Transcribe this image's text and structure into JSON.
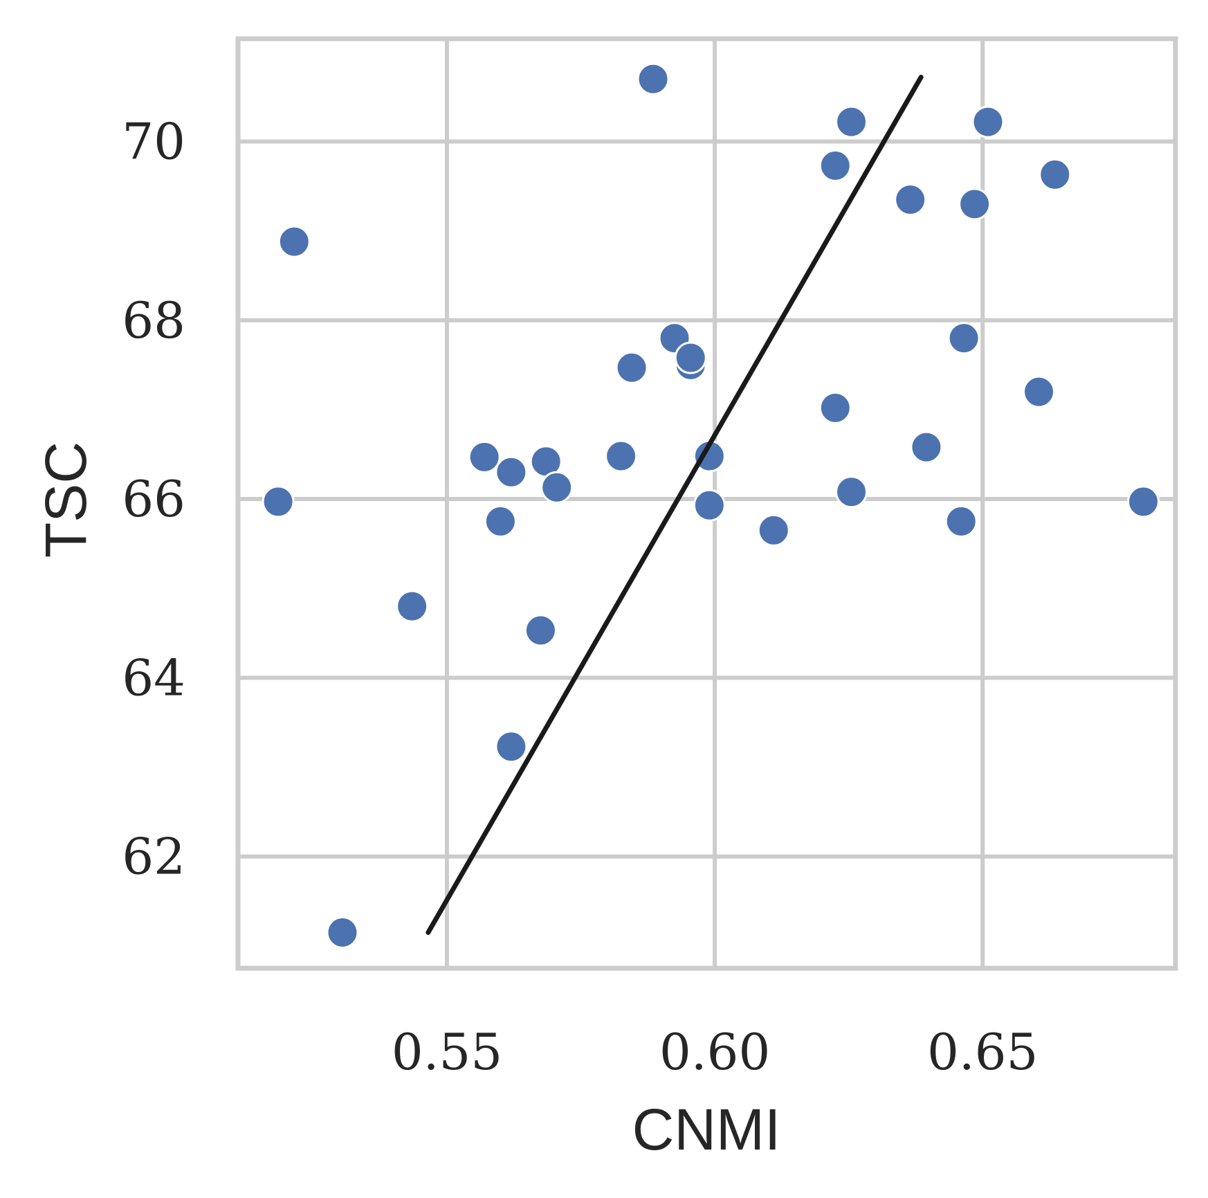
{
  "chart_data": {
    "type": "scatter",
    "xlabel": "CNMI",
    "ylabel": "TSC",
    "xlim": [
      0.511,
      0.686
    ],
    "ylim": [
      60.75,
      71.15
    ],
    "xticks": [
      {
        "value": 0.55,
        "label": "0.55"
      },
      {
        "value": 0.6,
        "label": "0.60"
      },
      {
        "value": 0.65,
        "label": "0.65"
      }
    ],
    "yticks": [
      {
        "value": 62,
        "label": "62"
      },
      {
        "value": 64,
        "label": "64"
      },
      {
        "value": 66,
        "label": "66"
      },
      {
        "value": 68,
        "label": "68"
      },
      {
        "value": 70,
        "label": "70"
      }
    ],
    "grid": true,
    "colors": {
      "points": "#4c72b0",
      "fit_line": "#1a1a1a",
      "grid": "#cccccc",
      "text": "#262626"
    },
    "series": [
      {
        "points": [
          {
            "x": 0.5185,
            "y": 65.97
          },
          {
            "x": 0.5215,
            "y": 68.88
          },
          {
            "x": 0.5305,
            "y": 61.15
          },
          {
            "x": 0.5435,
            "y": 64.8
          },
          {
            "x": 0.557,
            "y": 66.47
          },
          {
            "x": 0.56,
            "y": 65.75
          },
          {
            "x": 0.562,
            "y": 66.3
          },
          {
            "x": 0.562,
            "y": 63.23
          },
          {
            "x": 0.5675,
            "y": 64.53
          },
          {
            "x": 0.5685,
            "y": 66.42
          },
          {
            "x": 0.5705,
            "y": 66.13
          },
          {
            "x": 0.5825,
            "y": 66.48
          },
          {
            "x": 0.5845,
            "y": 67.47
          },
          {
            "x": 0.5885,
            "y": 70.7
          },
          {
            "x": 0.5925,
            "y": 67.8
          },
          {
            "x": 0.5955,
            "y": 67.5
          },
          {
            "x": 0.5955,
            "y": 67.58
          },
          {
            "x": 0.599,
            "y": 66.48
          },
          {
            "x": 0.599,
            "y": 65.93
          },
          {
            "x": 0.611,
            "y": 65.65
          },
          {
            "x": 0.6225,
            "y": 67.02
          },
          {
            "x": 0.6225,
            "y": 69.73
          },
          {
            "x": 0.6255,
            "y": 70.22
          },
          {
            "x": 0.6255,
            "y": 66.08
          },
          {
            "x": 0.6365,
            "y": 69.35
          },
          {
            "x": 0.6395,
            "y": 66.58
          },
          {
            "x": 0.646,
            "y": 65.75
          },
          {
            "x": 0.6465,
            "y": 67.8
          },
          {
            "x": 0.6485,
            "y": 69.3
          },
          {
            "x": 0.651,
            "y": 70.22
          },
          {
            "x": 0.6605,
            "y": 67.2
          },
          {
            "x": 0.6635,
            "y": 69.63
          },
          {
            "x": 0.68,
            "y": 65.97
          }
        ]
      }
    ],
    "fit_line": {
      "x": [
        0.5465,
        0.6385
      ],
      "y": [
        61.15,
        70.72
      ]
    }
  }
}
